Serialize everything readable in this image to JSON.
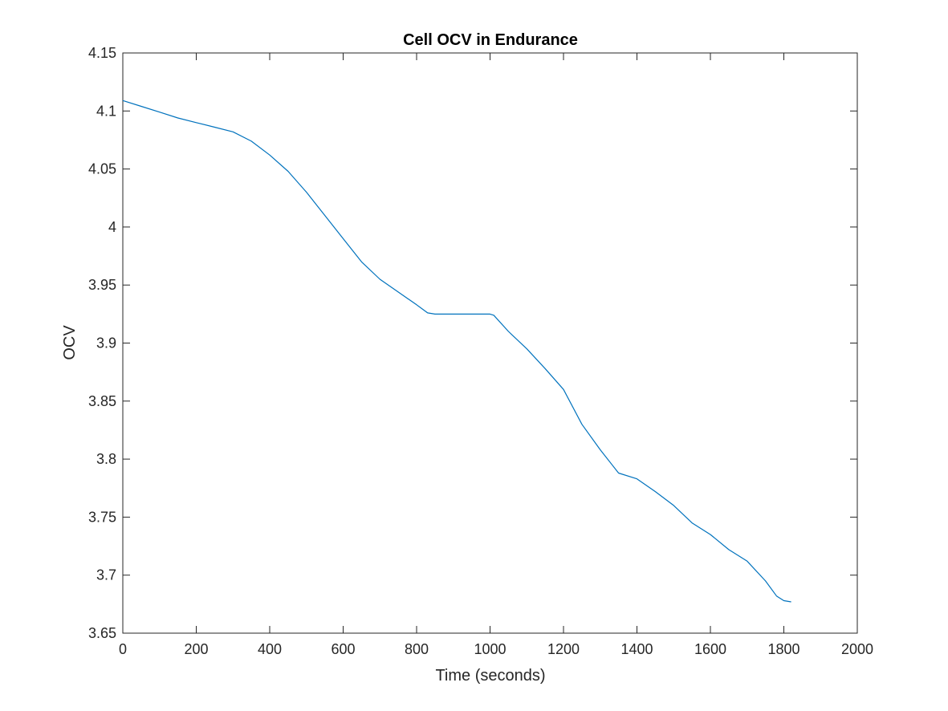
{
  "chart_data": {
    "type": "line",
    "title": "Cell OCV in Endurance",
    "xlabel": "Time (seconds)",
    "ylabel": "OCV",
    "xlim": [
      0,
      2000
    ],
    "ylim": [
      3.65,
      4.15
    ],
    "xticks": [
      0,
      200,
      400,
      600,
      800,
      1000,
      1200,
      1400,
      1600,
      1800,
      2000
    ],
    "xtick_labels": [
      "0",
      "200",
      "400",
      "600",
      "800",
      "1000",
      "1200",
      "1400",
      "1600",
      "1800",
      "2000"
    ],
    "yticks": [
      3.65,
      3.7,
      3.75,
      3.8,
      3.85,
      3.9,
      3.95,
      4.0,
      4.05,
      4.1,
      4.15
    ],
    "ytick_labels": [
      "3.65",
      "3.7",
      "3.75",
      "3.8",
      "3.85",
      "3.9",
      "3.95",
      "4",
      "4.05",
      "4.1",
      "4.15"
    ],
    "grid": false,
    "legend": "none",
    "series": [
      {
        "color": "#0072BD",
        "x": [
          0,
          50,
          100,
          150,
          200,
          250,
          300,
          350,
          400,
          450,
          500,
          550,
          600,
          650,
          700,
          750,
          800,
          830,
          850,
          900,
          950,
          1000,
          1010,
          1050,
          1100,
          1150,
          1200,
          1250,
          1300,
          1350,
          1400,
          1450,
          1500,
          1550,
          1600,
          1650,
          1700,
          1750,
          1780,
          1800,
          1820
        ],
        "y": [
          4.109,
          4.104,
          4.099,
          4.094,
          4.09,
          4.086,
          4.082,
          4.074,
          4.062,
          4.048,
          4.03,
          4.01,
          3.99,
          3.97,
          3.955,
          3.944,
          3.933,
          3.926,
          3.925,
          3.925,
          3.925,
          3.925,
          3.924,
          3.91,
          3.895,
          3.878,
          3.86,
          3.83,
          3.808,
          3.788,
          3.783,
          3.772,
          3.76,
          3.745,
          3.735,
          3.722,
          3.712,
          3.695,
          3.682,
          3.678,
          3.677
        ]
      }
    ]
  }
}
